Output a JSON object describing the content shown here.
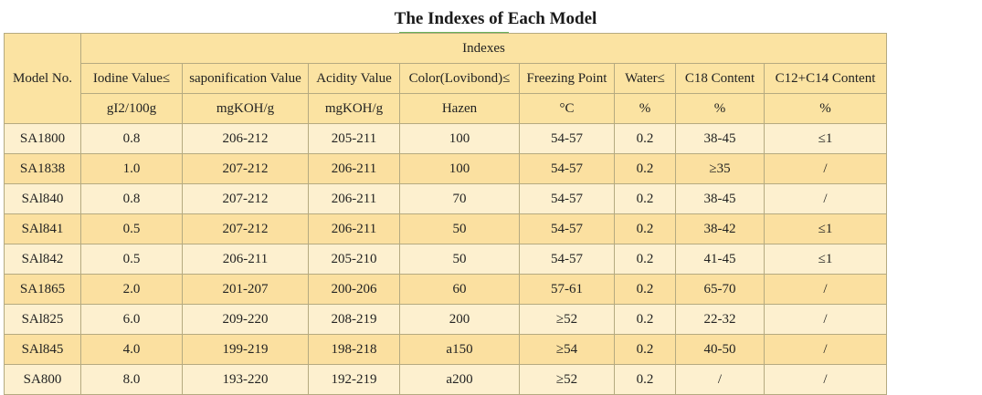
{
  "title": "The Indexes of Each Model",
  "table": {
    "model_header": "Model No.",
    "group_header": "Indexes",
    "columns": [
      {
        "name": "Iodine Value≤",
        "unit": "gI2/100g"
      },
      {
        "name": "saponification Value",
        "unit": "mgKOH/g"
      },
      {
        "name": "Acidity Value",
        "unit": "mgKOH/g"
      },
      {
        "name": "Color(Lovibond)≤",
        "unit": "Hazen"
      },
      {
        "name": "Freezing Point",
        "unit": "°C"
      },
      {
        "name": "Water≤",
        "unit": "%"
      },
      {
        "name": "C18 Content",
        "unit": "%"
      },
      {
        "name": "C12+C14 Content",
        "unit": "%"
      }
    ],
    "rows": [
      [
        "SA1800",
        "0.8",
        "206-212",
        "205-211",
        "100",
        "54-57",
        "0.2",
        "38-45",
        "≤1"
      ],
      [
        "SA1838",
        "1.0",
        "207-212",
        "206-211",
        "100",
        "54-57",
        "0.2",
        "≥35",
        "/"
      ],
      [
        "SAl840",
        "0.8",
        "207-212",
        "206-211",
        "70",
        "54-57",
        "0.2",
        "38-45",
        "/"
      ],
      [
        "SAl841",
        "0.5",
        "207-212",
        "206-211",
        "50",
        "54-57",
        "0.2",
        "38-42",
        "≤1"
      ],
      [
        "SAl842",
        "0.5",
        "206-211",
        "205-210",
        "50",
        "54-57",
        "0.2",
        "41-45",
        "≤1"
      ],
      [
        "SA1865",
        "2.0",
        "201-207",
        "200-206",
        "60",
        "57-61",
        "0.2",
        "65-70",
        "/"
      ],
      [
        "SAl825",
        "6.0",
        "209-220",
        "208-219",
        "200",
        "≥52",
        "0.2",
        "22-32",
        "/"
      ],
      [
        "SAl845",
        "4.0",
        "199-219",
        "198-218",
        "a150",
        "≥54",
        "0.2",
        "40-50",
        "/"
      ],
      [
        "SA800",
        "8.0",
        "193-220",
        "192-219",
        "a200",
        "≥52",
        "0.2",
        "/",
        "/"
      ]
    ]
  }
}
